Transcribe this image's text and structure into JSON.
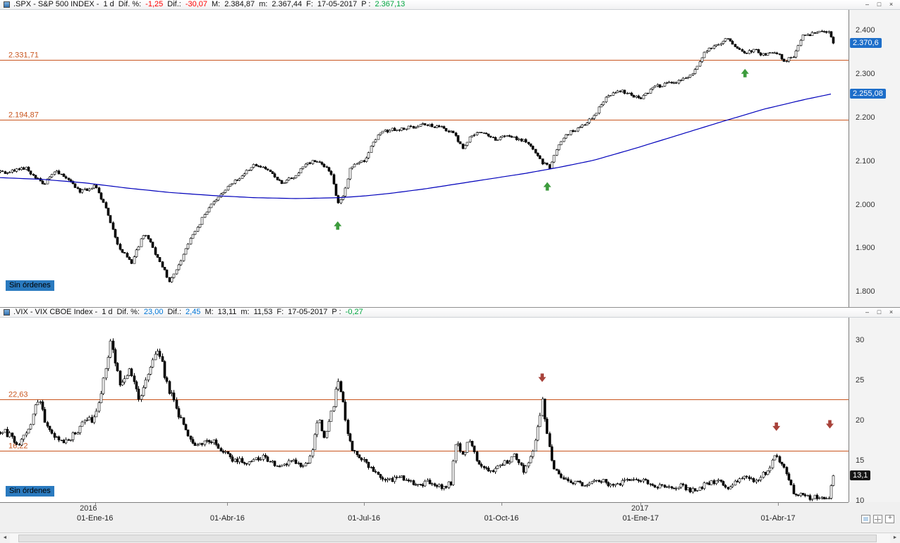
{
  "icons": {
    "minimize": "–",
    "maximize": "□",
    "close": "×",
    "scroll_left": "◄",
    "scroll_right": "►"
  },
  "colors": {
    "hline": "#c9551e",
    "ma_line": "#0000bb",
    "badge_blue": "#1d6ec9",
    "badge_dark": "#161616",
    "no_orders_bg": "#2a7abf",
    "arrow_up": "#3d9c3d",
    "arrow_down": "#a8423a",
    "value_red": "#ff0000",
    "value_blue": "#0076d7",
    "value_green": "#00a63f",
    "candle": "#000000"
  },
  "windows": [
    {
      "id": "spx",
      "no_orders_label": "Sin órdenes",
      "titlebar": {
        "segments": [
          {
            "t": ".SPX - S&P 500 INDEX -",
            "c": "k"
          },
          {
            "t": "1 d",
            "c": "k"
          },
          {
            "t": "Dif. %:",
            "c": "k"
          },
          {
            "t": "-1,25",
            "c": "r"
          },
          {
            "t": "Dif.:",
            "c": "k"
          },
          {
            "t": "-30,07",
            "c": "r"
          },
          {
            "t": "M:",
            "c": "k"
          },
          {
            "t": "2.384,87",
            "c": "k"
          },
          {
            "t": "m:",
            "c": "k"
          },
          {
            "t": "2.367,44",
            "c": "k"
          },
          {
            "t": "F:",
            "c": "k"
          },
          {
            "t": "17-05-2017",
            "c": "k"
          },
          {
            "t": "P :",
            "c": "k"
          },
          {
            "t": "2.367,13",
            "c": "g"
          }
        ]
      }
    },
    {
      "id": "vix",
      "no_orders_label": "Sin órdenes",
      "titlebar": {
        "segments": [
          {
            "t": ".VIX - VIX CBOE Index -",
            "c": "k"
          },
          {
            "t": "1 d",
            "c": "k"
          },
          {
            "t": "Dif. %:",
            "c": "k"
          },
          {
            "t": "23,00",
            "c": "b"
          },
          {
            "t": "Dif.:",
            "c": "k"
          },
          {
            "t": "2,45",
            "c": "b"
          },
          {
            "t": "M:",
            "c": "k"
          },
          {
            "t": "13,11",
            "c": "k"
          },
          {
            "t": "m:",
            "c": "k"
          },
          {
            "t": "11,53",
            "c": "k"
          },
          {
            "t": "F:",
            "c": "k"
          },
          {
            "t": "17-05-2017",
            "c": "k"
          },
          {
            "t": "P :",
            "c": "k"
          },
          {
            "t": "-0,27",
            "c": "g"
          }
        ]
      }
    }
  ],
  "xaxis": {
    "years": [
      {
        "f": 0.094,
        "label": "2016"
      },
      {
        "f": 0.744,
        "label": "2017"
      }
    ],
    "ticks": [
      {
        "f": 0.112,
        "label": "01-Ene-16"
      },
      {
        "f": 0.268,
        "label": "01-Abr-16"
      },
      {
        "f": 0.429,
        "label": "01-Jul-16"
      },
      {
        "f": 0.591,
        "label": "01-Oct-16"
      },
      {
        "f": 0.755,
        "label": "01-Ene-17"
      },
      {
        "f": 0.917,
        "label": "01-Abr-17"
      }
    ]
  },
  "chart_data": [
    {
      "type": "candlestick",
      "window": "spx",
      "title": ".SPX - S&P 500 INDEX",
      "timeframe": "1 d",
      "ylim": [
        1765,
        2447
      ],
      "yticks": [
        {
          "v": 2400,
          "label": "2.400"
        },
        {
          "v": 2300,
          "label": "2.300"
        },
        {
          "v": 2200,
          "label": "2.200"
        },
        {
          "v": 2100,
          "label": "2.100"
        },
        {
          "v": 2000,
          "label": "2.000"
        },
        {
          "v": 1900,
          "label": "1.900"
        },
        {
          "v": 1800,
          "label": "1.800"
        }
      ],
      "hlines": [
        {
          "v": 2331.71,
          "label": "2.331,71"
        },
        {
          "v": 2194.87,
          "label": "2.194,87"
        }
      ],
      "badges": [
        {
          "v": 2370.6,
          "label": "2.370,6",
          "bg": "#1d6ec9",
          "name": "last-price-badge"
        },
        {
          "v": 2255.08,
          "label": "2.255,08",
          "bg": "#1d6ec9",
          "name": "ma-value-badge"
        }
      ],
      "ma": {
        "anchors": [
          [
            0,
            2062
          ],
          [
            0.05,
            2058
          ],
          [
            0.1,
            2050
          ],
          [
            0.15,
            2038
          ],
          [
            0.2,
            2028
          ],
          [
            0.25,
            2021
          ],
          [
            0.3,
            2016
          ],
          [
            0.35,
            2014
          ],
          [
            0.4,
            2016
          ],
          [
            0.43,
            2020
          ],
          [
            0.46,
            2026
          ],
          [
            0.5,
            2036
          ],
          [
            0.54,
            2048
          ],
          [
            0.58,
            2060
          ],
          [
            0.62,
            2072
          ],
          [
            0.66,
            2086
          ],
          [
            0.7,
            2102
          ],
          [
            0.75,
            2130
          ],
          [
            0.8,
            2160
          ],
          [
            0.85,
            2190
          ],
          [
            0.9,
            2219
          ],
          [
            0.95,
            2242
          ],
          [
            0.982,
            2255.08
          ]
        ]
      },
      "close_anchors": [
        [
          0.007,
          2075
        ],
        [
          0.03,
          2085
        ],
        [
          0.05,
          2045
        ],
        [
          0.065,
          2078
        ],
        [
          0.08,
          2060
        ],
        [
          0.095,
          2030
        ],
        [
          0.112,
          2043
        ],
        [
          0.125,
          1990
        ],
        [
          0.14,
          1900
        ],
        [
          0.155,
          1868
        ],
        [
          0.17,
          1938
        ],
        [
          0.185,
          1880
        ],
        [
          0.2,
          1822
        ],
        [
          0.21,
          1862
        ],
        [
          0.225,
          1925
        ],
        [
          0.245,
          1990
        ],
        [
          0.268,
          2040
        ],
        [
          0.285,
          2066
        ],
        [
          0.3,
          2092
        ],
        [
          0.315,
          2082
        ],
        [
          0.33,
          2050
        ],
        [
          0.345,
          2062
        ],
        [
          0.36,
          2096
        ],
        [
          0.375,
          2100
        ],
        [
          0.39,
          2071
        ],
        [
          0.398,
          2002
        ],
        [
          0.405,
          2022
        ],
        [
          0.412,
          2085
        ],
        [
          0.429,
          2100
        ],
        [
          0.445,
          2162
        ],
        [
          0.46,
          2172
        ],
        [
          0.48,
          2176
        ],
        [
          0.5,
          2184
        ],
        [
          0.52,
          2176
        ],
        [
          0.535,
          2162
        ],
        [
          0.545,
          2128
        ],
        [
          0.555,
          2160
        ],
        [
          0.57,
          2166
        ],
        [
          0.583,
          2150
        ],
        [
          0.597,
          2160
        ],
        [
          0.61,
          2150
        ],
        [
          0.623,
          2142
        ],
        [
          0.637,
          2100
        ],
        [
          0.648,
          2083
        ],
        [
          0.658,
          2140
        ],
        [
          0.67,
          2164
        ],
        [
          0.685,
          2180
        ],
        [
          0.7,
          2206
        ],
        [
          0.715,
          2250
        ],
        [
          0.73,
          2262
        ],
        [
          0.742,
          2256
        ],
        [
          0.754,
          2240
        ],
        [
          0.768,
          2268
        ],
        [
          0.782,
          2276
        ],
        [
          0.8,
          2282
        ],
        [
          0.815,
          2296
        ],
        [
          0.83,
          2350
        ],
        [
          0.845,
          2366
        ],
        [
          0.855,
          2384
        ],
        [
          0.863,
          2372
        ],
        [
          0.875,
          2346
        ],
        [
          0.888,
          2356
        ],
        [
          0.9,
          2342
        ],
        [
          0.912,
          2352
        ],
        [
          0.925,
          2330
        ],
        [
          0.935,
          2340
        ],
        [
          0.945,
          2386
        ],
        [
          0.958,
          2392
        ],
        [
          0.97,
          2396
        ],
        [
          0.977,
          2399
        ],
        [
          0.982,
          2370.6
        ]
      ],
      "arrows": [
        {
          "f": 0.398,
          "v": 1952,
          "dir": "up"
        },
        {
          "f": 0.645,
          "v": 2042,
          "dir": "up"
        },
        {
          "f": 0.878,
          "v": 2302,
          "dir": "up"
        }
      ],
      "noise": {
        "seed": 7,
        "body": 6,
        "prop": 0
      },
      "last_frac": 0.982
    },
    {
      "type": "candlestick",
      "window": "vix",
      "title": ".VIX - VIX CBOE Index",
      "timeframe": "1 d",
      "ylim": [
        9.8,
        32.8
      ],
      "yticks": [
        {
          "v": 30,
          "label": "30"
        },
        {
          "v": 25,
          "label": "25"
        },
        {
          "v": 20,
          "label": "20"
        },
        {
          "v": 15,
          "label": "15"
        },
        {
          "v": 10,
          "label": "10"
        }
      ],
      "hlines": [
        {
          "v": 22.63,
          "label": "22,63"
        },
        {
          "v": 16.22,
          "label": "16,22"
        }
      ],
      "badges": [
        {
          "v": 13.1,
          "label": "13,1",
          "bg": "#161616",
          "name": "last-price-badge"
        }
      ],
      "close_anchors": [
        [
          0.007,
          18.5
        ],
        [
          0.02,
          17.0
        ],
        [
          0.033,
          18.5
        ],
        [
          0.045,
          23.0
        ],
        [
          0.055,
          19.0
        ],
        [
          0.07,
          17.3
        ],
        [
          0.085,
          18.0
        ],
        [
          0.1,
          19.8
        ],
        [
          0.112,
          20.3
        ],
        [
          0.122,
          25.0
        ],
        [
          0.131,
          30.2
        ],
        [
          0.142,
          24.0
        ],
        [
          0.152,
          26.5
        ],
        [
          0.163,
          22.5
        ],
        [
          0.175,
          25.5
        ],
        [
          0.185,
          29.0
        ],
        [
          0.2,
          23.5
        ],
        [
          0.215,
          19.5
        ],
        [
          0.23,
          16.8
        ],
        [
          0.25,
          17.5
        ],
        [
          0.27,
          15.3
        ],
        [
          0.29,
          14.7
        ],
        [
          0.31,
          15.6
        ],
        [
          0.33,
          14.1
        ],
        [
          0.345,
          15.2
        ],
        [
          0.358,
          13.9
        ],
        [
          0.368,
          16.5
        ],
        [
          0.374,
          20.5
        ],
        [
          0.382,
          18.0
        ],
        [
          0.392,
          21.5
        ],
        [
          0.397,
          25.0
        ],
        [
          0.403,
          22.5
        ],
        [
          0.41,
          17.5
        ],
        [
          0.42,
          15.5
        ],
        [
          0.432,
          14.5
        ],
        [
          0.445,
          13.2
        ],
        [
          0.46,
          12.5
        ],
        [
          0.475,
          12.8
        ],
        [
          0.49,
          11.9
        ],
        [
          0.505,
          12.3
        ],
        [
          0.52,
          11.6
        ],
        [
          0.531,
          12.2
        ],
        [
          0.537,
          17.3
        ],
        [
          0.545,
          15.5
        ],
        [
          0.553,
          17.6
        ],
        [
          0.562,
          14.8
        ],
        [
          0.575,
          13.6
        ],
        [
          0.59,
          14.2
        ],
        [
          0.605,
          15.6
        ],
        [
          0.618,
          13.6
        ],
        [
          0.628,
          16.0
        ],
        [
          0.634,
          19.5
        ],
        [
          0.639,
          22.2
        ],
        [
          0.645,
          18.0
        ],
        [
          0.652,
          13.8
        ],
        [
          0.665,
          12.8
        ],
        [
          0.678,
          12.2
        ],
        [
          0.69,
          11.9
        ],
        [
          0.705,
          12.6
        ],
        [
          0.72,
          11.9
        ],
        [
          0.735,
          12.4
        ],
        [
          0.754,
          12.8
        ],
        [
          0.77,
          11.9
        ],
        [
          0.785,
          11.5
        ],
        [
          0.8,
          11.9
        ],
        [
          0.815,
          11.3
        ],
        [
          0.83,
          11.9
        ],
        [
          0.845,
          12.4
        ],
        [
          0.86,
          11.5
        ],
        [
          0.875,
          13.2
        ],
        [
          0.89,
          12.4
        ],
        [
          0.905,
          13.9
        ],
        [
          0.915,
          15.9
        ],
        [
          0.922,
          14.3
        ],
        [
          0.928,
          12.9
        ],
        [
          0.935,
          11.0
        ],
        [
          0.945,
          10.6
        ],
        [
          0.955,
          10.2
        ],
        [
          0.965,
          10.6
        ],
        [
          0.972,
          9.9
        ],
        [
          0.977,
          10.6
        ],
        [
          0.982,
          13.1
        ]
      ],
      "arrows": [
        {
          "f": 0.639,
          "v": 25.3,
          "dir": "down"
        },
        {
          "f": 0.915,
          "v": 19.2,
          "dir": "down"
        },
        {
          "f": 0.978,
          "v": 19.5,
          "dir": "down"
        }
      ],
      "noise": {
        "seed": 13,
        "body": 0.25,
        "prop": 0.022
      },
      "last_frac": 0.982
    }
  ]
}
